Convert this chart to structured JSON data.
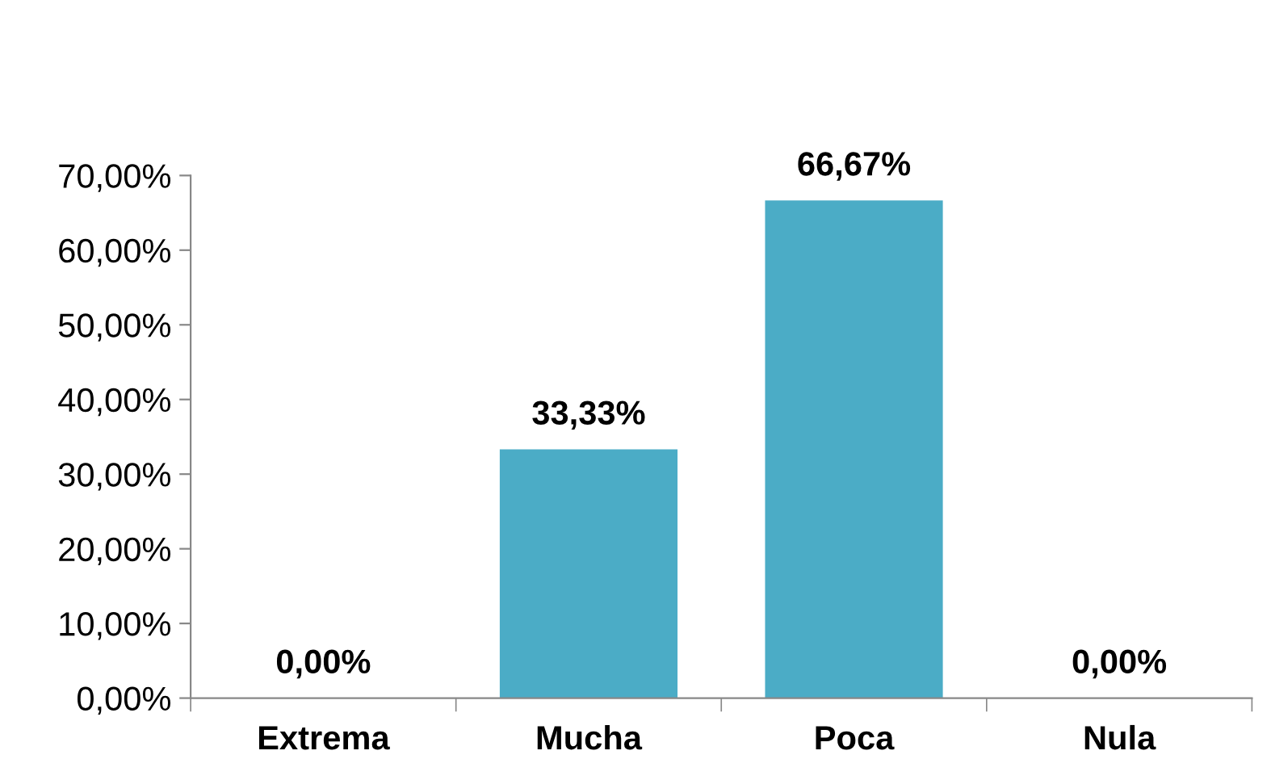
{
  "chart_data": {
    "type": "bar",
    "categories": [
      "Extrema",
      "Mucha",
      "Poca",
      "Nula"
    ],
    "values": [
      0,
      33.33,
      66.67,
      0
    ],
    "color": "#4bacc6",
    "value_labels": [
      "0,00%",
      "33,33%",
      "66,67%",
      "0,00%"
    ],
    "ylim": [
      0,
      70
    ],
    "yticks": [
      {
        "value": 0,
        "label": "0,00%"
      },
      {
        "value": 10,
        "label": "10,00%"
      },
      {
        "value": 20,
        "label": "20,00%"
      },
      {
        "value": 30,
        "label": "30,00%"
      },
      {
        "value": 40,
        "label": "40,00%"
      },
      {
        "value": 50,
        "label": "50,00%"
      },
      {
        "value": 60,
        "label": "60,00%"
      },
      {
        "value": 70,
        "label": "70,00%"
      }
    ],
    "grid": false,
    "legend": false
  }
}
